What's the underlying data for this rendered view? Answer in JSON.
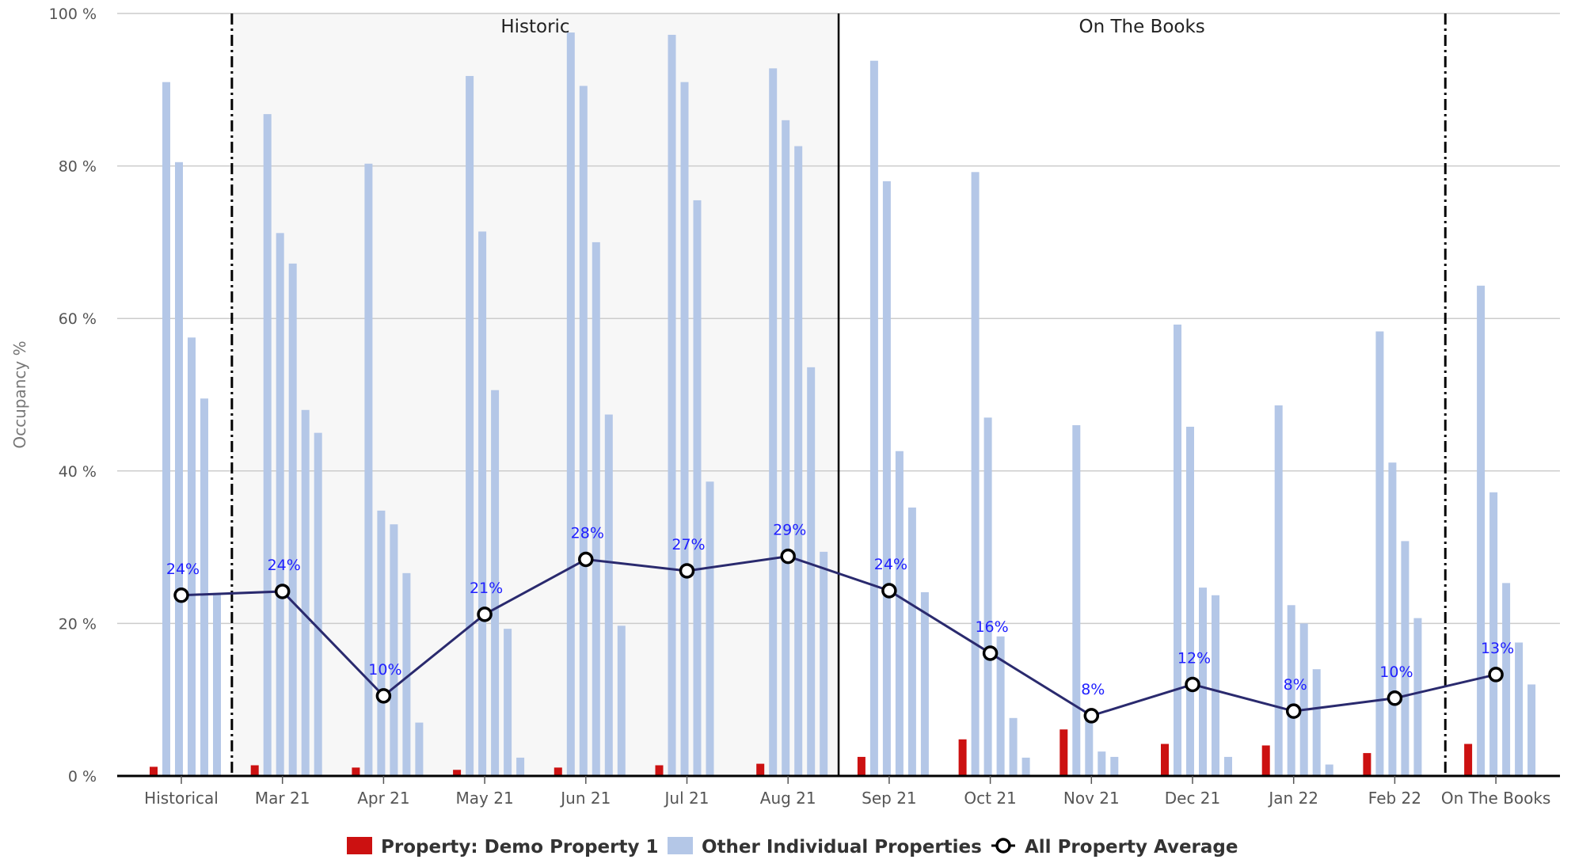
{
  "chart_data": {
    "type": "bar",
    "ylabel": "Occupancy %",
    "ylim": [
      0,
      100
    ],
    "yticks": [
      0,
      20,
      40,
      60,
      80,
      100
    ],
    "ytick_suffix": " %",
    "grid": true,
    "legend_position": "bottom",
    "categories": [
      "Historical",
      "Mar 21",
      "Apr 21",
      "May 21",
      "Jun 21",
      "Jul 21",
      "Aug 21",
      "Sep 21",
      "Oct 21",
      "Nov 21",
      "Dec 21",
      "Jan 22",
      "Feb 22",
      "On The Books"
    ],
    "bands": [
      {
        "label": "Historic",
        "from_category": 1,
        "to_category": 6
      },
      {
        "label": "On The Books",
        "from_category": 7,
        "to_category": 12
      }
    ],
    "series": [
      {
        "name": "Property: Demo Property 1",
        "kind": "bar",
        "color": "#cc1111",
        "values": [
          1.2,
          1.4,
          1.1,
          0.8,
          1.1,
          1.4,
          1.6,
          2.5,
          4.8,
          6.1,
          4.2,
          4.0,
          3.0,
          4.2
        ]
      },
      {
        "name": "Other Individual Properties",
        "kind": "bar-group",
        "color": "#b4c7e7",
        "values": [
          [
            91,
            80.5,
            57.5,
            49.5,
            24
          ],
          [
            86.8,
            71.2,
            67.2,
            48,
            45
          ],
          [
            80.3,
            34.8,
            33,
            26.6,
            7
          ],
          [
            91.8,
            71.4,
            50.6,
            19.3,
            2.4
          ],
          [
            97.5,
            90.5,
            70,
            47.4,
            19.7
          ],
          [
            97.2,
            91,
            75.5,
            38.6
          ],
          [
            92.8,
            86,
            82.6,
            53.6,
            29.4
          ],
          [
            93.8,
            78,
            42.6,
            35.2,
            24.1
          ],
          [
            79.2,
            47,
            18.3,
            7.6,
            2.4
          ],
          [
            46,
            7.7,
            3.2,
            2.5
          ],
          [
            59.2,
            45.8,
            24.7,
            23.7,
            2.5
          ],
          [
            48.6,
            22.4,
            20,
            14,
            1.5
          ],
          [
            58.3,
            41.1,
            30.8,
            20.7
          ],
          [
            64.3,
            37.2,
            25.3,
            17.5,
            12
          ]
        ]
      },
      {
        "name": "All Property Average",
        "kind": "line",
        "color": "#2a2a6e",
        "values": [
          23.7,
          24.2,
          10.5,
          21.2,
          28.4,
          26.9,
          28.8,
          24.3,
          16.1,
          7.9,
          12.0,
          8.5,
          10.2,
          13.3
        ],
        "labels": [
          "24%",
          "24%",
          "10%",
          "21%",
          "28%",
          "27%",
          "29%",
          "24%",
          "16%",
          "8%",
          "12%",
          "8%",
          "10%",
          "13%"
        ]
      }
    ]
  }
}
